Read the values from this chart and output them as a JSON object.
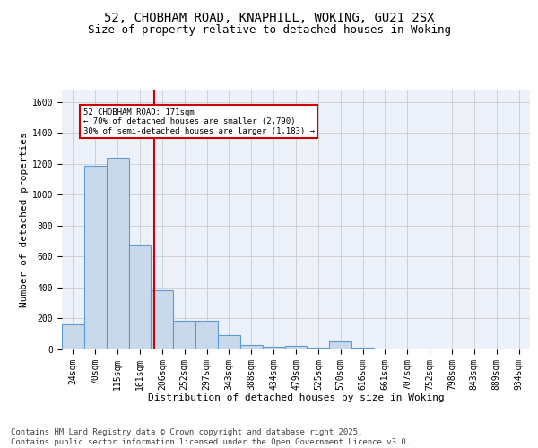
{
  "title_line1": "52, CHOBHAM ROAD, KNAPHILL, WOKING, GU21 2SX",
  "title_line2": "Size of property relative to detached houses in Woking",
  "xlabel": "Distribution of detached houses by size in Woking",
  "ylabel": "Number of detached properties",
  "categories": [
    "24sqm",
    "70sqm",
    "115sqm",
    "161sqm",
    "206sqm",
    "252sqm",
    "297sqm",
    "343sqm",
    "388sqm",
    "434sqm",
    "479sqm",
    "525sqm",
    "570sqm",
    "616sqm",
    "661sqm",
    "707sqm",
    "752sqm",
    "798sqm",
    "843sqm",
    "889sqm",
    "934sqm"
  ],
  "values": [
    160,
    1190,
    1240,
    680,
    380,
    185,
    185,
    95,
    30,
    20,
    25,
    10,
    50,
    10,
    0,
    0,
    0,
    0,
    0,
    0,
    0
  ],
  "bar_color": "#c9d9ec",
  "bar_edge_color": "#5b9bd5",
  "grid_color": "#d0d0d0",
  "vline_x": 3.65,
  "vline_color": "#cc0000",
  "annotation_text": "52 CHOBHAM ROAD: 171sqm\n← 70% of detached houses are smaller (2,790)\n30% of semi-detached houses are larger (1,183) →",
  "annotation_box_color": "#cc0000",
  "ylim": [
    0,
    1680
  ],
  "yticks": [
    0,
    200,
    400,
    600,
    800,
    1000,
    1200,
    1400,
    1600
  ],
  "footnote": "Contains HM Land Registry data © Crown copyright and database right 2025.\nContains public sector information licensed under the Open Government Licence v3.0.",
  "bg_color": "#edf2fa",
  "fig_bg_color": "#ffffff",
  "title_fontsize": 10,
  "subtitle_fontsize": 9,
  "axis_label_fontsize": 8,
  "tick_fontsize": 7,
  "footnote_fontsize": 6.5
}
